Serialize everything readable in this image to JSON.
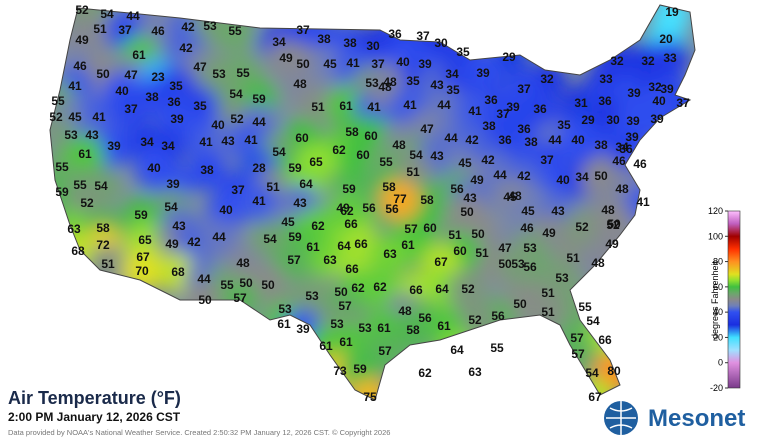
{
  "title": "Air Temperature (°F)",
  "subtitle": "2:00 PM January 12, 2026 CST",
  "credit": "Data provided by NOAA's National Weather Service. Created 2:50:32 PM January 12, 2026 CST. © Copyright 2026",
  "logo": "Mesonet",
  "colorbar": {
    "label": "degrees Fahrenheit",
    "range": [
      -20,
      120
    ],
    "ticks": [
      120,
      100,
      80,
      60,
      40,
      20,
      0,
      -20
    ]
  },
  "readings": [
    52,
    54,
    44,
    19,
    51,
    37,
    46,
    42,
    53,
    55,
    37,
    36,
    37,
    30,
    20,
    49,
    42,
    34,
    38,
    38,
    30,
    35,
    29,
    32,
    32,
    33,
    46,
    61,
    50,
    47,
    23,
    47,
    53,
    55,
    49,
    50,
    45,
    41,
    37,
    40,
    39,
    34,
    39,
    32,
    33,
    41,
    35,
    53,
    48,
    35,
    43,
    35,
    37,
    39,
    55,
    40,
    38,
    36,
    35,
    54,
    59,
    48,
    51,
    61,
    41,
    48,
    41,
    44,
    36,
    39,
    36,
    31,
    36,
    39,
    32,
    40,
    37,
    52,
    45,
    41,
    37,
    39,
    40,
    52,
    44,
    47,
    41,
    37,
    38,
    36,
    35,
    29,
    30,
    39,
    39,
    53,
    43,
    39,
    34,
    34,
    41,
    43,
    41,
    60,
    58,
    60,
    62,
    60,
    48,
    44,
    42,
    36,
    38,
    44,
    40,
    38,
    34,
    39,
    55,
    61,
    54,
    59,
    65,
    55,
    54,
    43,
    45,
    42,
    37,
    46,
    46,
    36,
    40,
    38,
    28,
    51,
    64,
    51,
    49,
    44,
    42,
    40,
    34,
    50,
    59,
    55,
    54,
    39,
    37,
    59,
    58,
    56,
    45,
    48,
    52,
    54,
    40,
    41,
    43,
    49,
    56,
    56,
    58,
    43,
    48,
    41,
    59,
    50,
    45,
    43,
    48,
    52,
    63,
    58,
    43,
    45,
    59,
    62,
    66,
    62,
    57,
    60,
    51,
    50,
    46,
    49,
    52,
    50,
    72,
    65,
    49,
    42,
    44,
    54,
    61,
    64,
    66,
    61,
    47,
    53,
    51,
    68,
    67,
    48,
    57,
    63,
    63,
    60,
    50,
    51,
    70,
    68,
    66,
    67,
    56,
    51,
    48,
    49,
    44,
    55,
    50,
    50,
    50,
    62,
    62,
    64,
    52,
    53,
    51,
    53,
    50,
    57,
    53,
    57,
    66,
    50,
    51,
    55,
    53,
    48,
    56,
    56,
    52,
    54,
    61,
    39,
    53,
    53,
    61,
    61,
    58,
    57,
    66,
    61,
    61,
    57,
    64,
    55,
    57,
    73,
    59,
    62,
    63,
    54,
    80,
    75,
    67,
    77
  ]
}
